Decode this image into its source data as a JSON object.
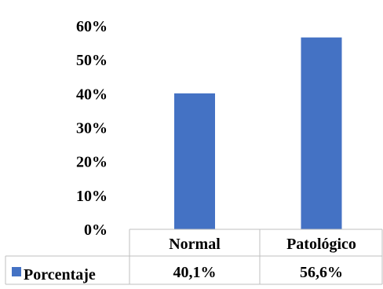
{
  "chart_data": {
    "type": "bar",
    "categories": [
      "Normal",
      "Patológico"
    ],
    "series": [
      {
        "name": "Porcentaje",
        "values": [
          40.1,
          56.6
        ],
        "value_labels": [
          "40,1%",
          "56,6%"
        ],
        "color": "#4472C4"
      }
    ],
    "y_ticks": [
      "0%",
      "10%",
      "20%",
      "30%",
      "40%",
      "50%",
      "60%"
    ],
    "ylim": [
      0,
      60
    ],
    "grid": false,
    "legend": "data-table-left",
    "title": "",
    "xlabel": "",
    "ylabel": ""
  }
}
